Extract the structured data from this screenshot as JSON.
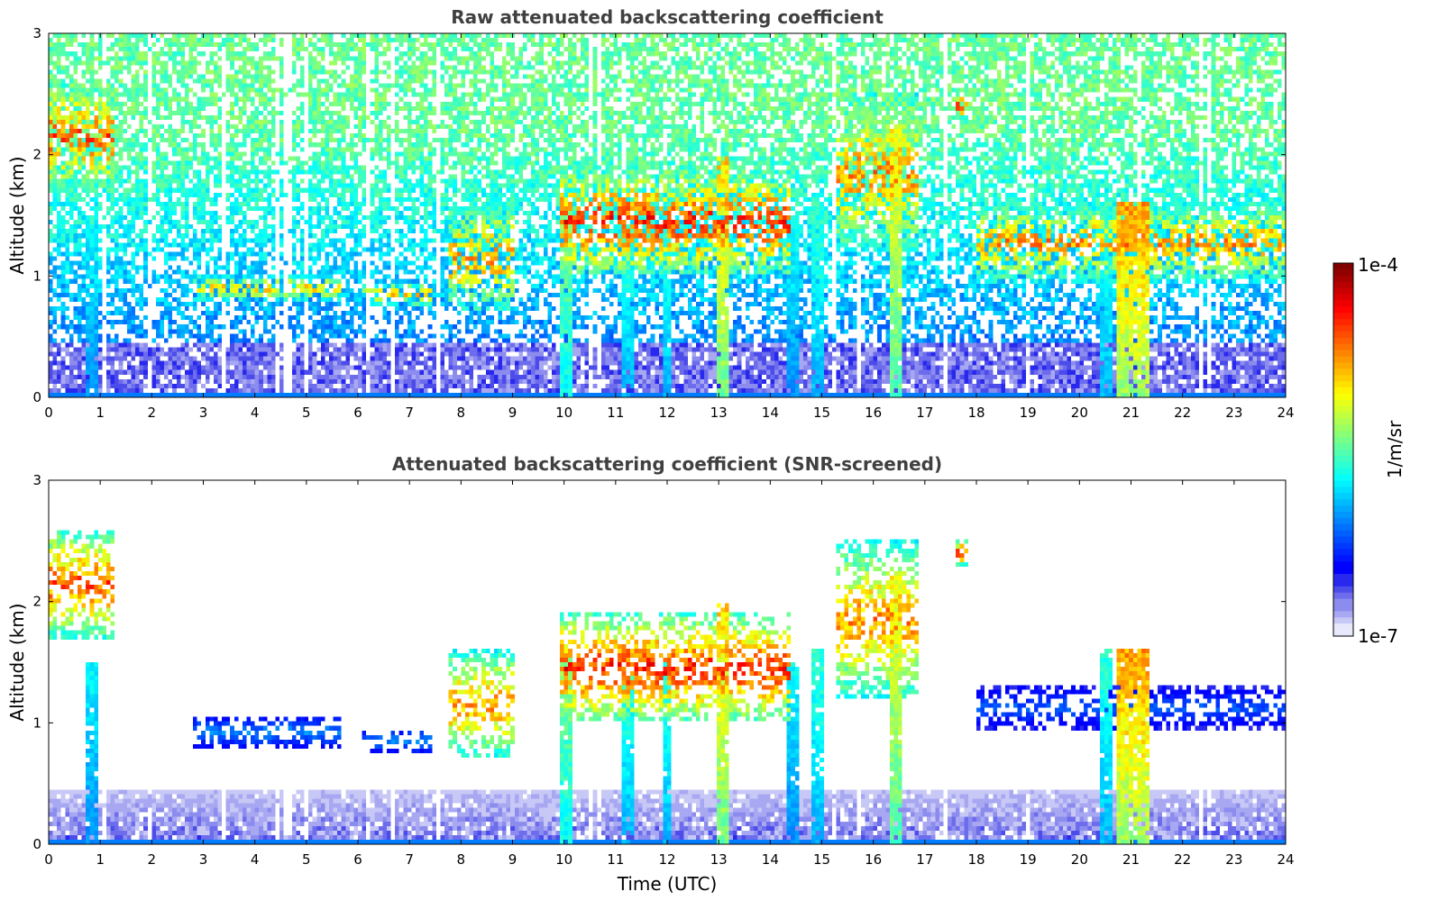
{
  "chart_data": [
    {
      "type": "heatmap",
      "title": "Raw attenuated backscattering coefficient",
      "xlabel": "",
      "ylabel": "Altitude (km)",
      "xlim": [
        0,
        24
      ],
      "ylim": [
        0,
        3
      ],
      "x_ticks": [
        "0",
        "1",
        "2",
        "3",
        "4",
        "5",
        "6",
        "7",
        "8",
        "9",
        "10",
        "11",
        "12",
        "13",
        "14",
        "15",
        "16",
        "17",
        "18",
        "19",
        "20",
        "21",
        "22",
        "23",
        "24"
      ],
      "y_ticks": [
        "0",
        "1",
        "2",
        "3"
      ],
      "screened": false,
      "layers": [
        {
          "start": 0.0,
          "end": 1.3,
          "base_km": 1.7,
          "top_km": 2.6,
          "level": 0.9
        },
        {
          "start": 2.8,
          "end": 5.7,
          "base_km": 0.8,
          "top_km": 1.0,
          "level": 0.8
        },
        {
          "start": 6.1,
          "end": 7.4,
          "base_km": 0.75,
          "top_km": 0.95,
          "level": 0.8
        },
        {
          "start": 7.8,
          "end": 9.0,
          "base_km": 0.7,
          "top_km": 1.6,
          "level": 0.85
        },
        {
          "start": 9.9,
          "end": 14.4,
          "base_km": 1.0,
          "top_km": 1.9,
          "level": 0.95
        },
        {
          "start": 15.3,
          "end": 16.9,
          "base_km": 1.2,
          "top_km": 2.5,
          "level": 0.85
        },
        {
          "start": 17.6,
          "end": 17.8,
          "base_km": 2.3,
          "top_km": 2.5,
          "level": 0.95
        },
        {
          "start": 18.0,
          "end": 24.0,
          "base_km": 0.95,
          "top_km": 1.6,
          "level": 0.85
        }
      ],
      "precip_columns": [
        {
          "x": 0.85,
          "top_km": 1.5,
          "level": 0.45
        },
        {
          "x": 10.05,
          "top_km": 1.6,
          "level": 0.6
        },
        {
          "x": 11.25,
          "top_km": 1.4,
          "level": 0.5
        },
        {
          "x": 12.0,
          "top_km": 1.5,
          "level": 0.5
        },
        {
          "x": 13.05,
          "top_km": 2.0,
          "level": 0.75
        },
        {
          "x": 14.4,
          "top_km": 1.5,
          "level": 0.45
        },
        {
          "x": 14.9,
          "top_km": 1.6,
          "level": 0.5
        },
        {
          "x": 16.45,
          "top_km": 2.2,
          "level": 0.7
        },
        {
          "x": 20.55,
          "top_km": 1.6,
          "level": 0.5
        },
        {
          "x": 21.05,
          "top_km": 1.6,
          "level": 0.8
        }
      ]
    },
    {
      "type": "heatmap",
      "title": "Attenuated backscattering coefficient (SNR-screened)",
      "xlabel": "Time (UTC)",
      "ylabel": "Altitude (km)",
      "xlim": [
        0,
        24
      ],
      "ylim": [
        0,
        3
      ],
      "x_ticks": [
        "0",
        "1",
        "2",
        "3",
        "4",
        "5",
        "6",
        "7",
        "8",
        "9",
        "10",
        "11",
        "12",
        "13",
        "14",
        "15",
        "16",
        "17",
        "18",
        "19",
        "20",
        "21",
        "22",
        "23",
        "24"
      ],
      "y_ticks": [
        "0",
        "1",
        "2",
        "3"
      ],
      "screened": true,
      "layers": [
        {
          "start": 0.0,
          "end": 1.3,
          "base_km": 1.7,
          "top_km": 2.6,
          "level": 0.9
        },
        {
          "start": 2.8,
          "end": 5.7,
          "base_km": 0.8,
          "top_km": 1.05,
          "level": 0.35
        },
        {
          "start": 6.1,
          "end": 7.4,
          "base_km": 0.75,
          "top_km": 0.95,
          "level": 0.35
        },
        {
          "start": 7.8,
          "end": 9.0,
          "base_km": 0.7,
          "top_km": 1.6,
          "level": 0.85
        },
        {
          "start": 9.9,
          "end": 14.4,
          "base_km": 1.0,
          "top_km": 1.9,
          "level": 0.95
        },
        {
          "start": 15.3,
          "end": 16.9,
          "base_km": 1.2,
          "top_km": 2.5,
          "level": 0.85
        },
        {
          "start": 17.6,
          "end": 17.8,
          "base_km": 2.3,
          "top_km": 2.5,
          "level": 0.95
        },
        {
          "start": 18.0,
          "end": 24.0,
          "base_km": 0.95,
          "top_km": 1.3,
          "level": 0.3
        }
      ],
      "precip_columns": [
        {
          "x": 0.85,
          "top_km": 1.5,
          "level": 0.45
        },
        {
          "x": 10.05,
          "top_km": 1.6,
          "level": 0.6
        },
        {
          "x": 11.25,
          "top_km": 1.4,
          "level": 0.5
        },
        {
          "x": 12.0,
          "top_km": 1.5,
          "level": 0.5
        },
        {
          "x": 13.05,
          "top_km": 2.0,
          "level": 0.75
        },
        {
          "x": 14.4,
          "top_km": 1.5,
          "level": 0.45
        },
        {
          "x": 14.9,
          "top_km": 1.6,
          "level": 0.5
        },
        {
          "x": 16.45,
          "top_km": 2.2,
          "level": 0.7
        },
        {
          "x": 20.55,
          "top_km": 1.6,
          "level": 0.5
        },
        {
          "x": 21.05,
          "top_km": 1.6,
          "level": 0.8
        }
      ]
    }
  ],
  "colorbar": {
    "label": "1/m/sr",
    "max_label": "1e-4",
    "min_label": "1e-7",
    "scale": "log",
    "colormap": "jet",
    "low_colors": [
      "#e8e8fb",
      "#c8c8f6",
      "#a8a8f2",
      "#8c8cef",
      "#6c6cec",
      "#4c4cea",
      "#2828ee",
      "#0000ff"
    ]
  }
}
